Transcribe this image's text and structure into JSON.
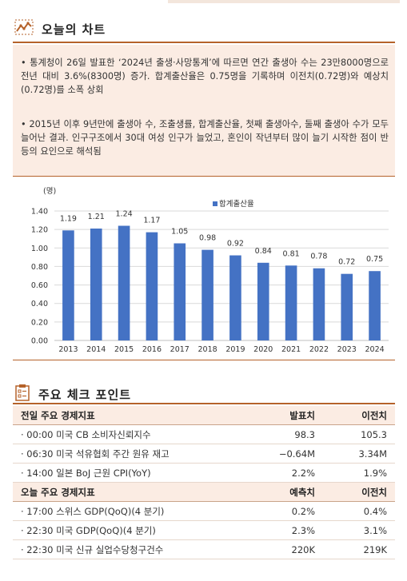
{
  "chart_section": {
    "title": "오늘의 차트",
    "bullets": [
      "• 통계청이 26일 발표한 ‘2024년 출생·사망통계’에 따르면 연간 출생아 수는 23만8000명으로 전년 대비 3.6%(8300명) 증가. 합계출산율은 0.75명을 기록하며 이전치(0.72명)와 예상치(0.72명)를 소폭 상회",
      "• 2015년 이후 9년만에 출생아 수, 조출생률, 합계출산율, 첫째 출생아수, 둘째 출생아 수가 모두 늘어난 결과. 인구구조에서 30대 여성 인구가 늘었고, 혼인이 작년부터 많이 늘기 시작한 점이 반등의 요인으로 해석됨"
    ]
  },
  "chart_data": {
    "type": "bar",
    "unit_label": "(명)",
    "legend": "합계출산율",
    "legend_position": "top-right",
    "categories": [
      "2013",
      "2014",
      "2015",
      "2016",
      "2017",
      "2018",
      "2019",
      "2020",
      "2021",
      "2022",
      "2023",
      "2024"
    ],
    "series": [
      {
        "name": "합계출산율",
        "values": [
          1.19,
          1.21,
          1.24,
          1.17,
          1.05,
          0.98,
          0.92,
          0.84,
          0.81,
          0.78,
          0.72,
          0.75
        ],
        "color": "#4472c4"
      }
    ],
    "data_labels": [
      "1.19",
      "1.21",
      "1.24",
      "1.17",
      "1.05",
      "0.98",
      "0.92",
      "0.84",
      "0.81",
      "0.78",
      "0.72",
      "0.75"
    ],
    "yticks": [
      "0.00",
      "0.20",
      "0.40",
      "0.60",
      "0.80",
      "1.00",
      "1.20",
      "1.40"
    ],
    "ylim": [
      0,
      1.4
    ],
    "grid": true
  },
  "checkpoints": {
    "title": "주요 체크 포인트",
    "prev": {
      "header": [
        "전일 주요 경제지표",
        "발표치",
        "이전치"
      ],
      "rows": [
        [
          "· 00:00 미국 CB 소비자신뢰지수",
          "98.3",
          "105.3"
        ],
        [
          "· 06:30 미국 석유협회 주간 원유 재고",
          "−0.64M",
          "3.34M"
        ],
        [
          "· 14:00 일본 BoJ 근원 CPI(YoY)",
          "2.2%",
          "1.9%"
        ]
      ]
    },
    "today": {
      "header": [
        "오늘 주요 경제지표",
        "예측치",
        "이전치"
      ],
      "rows": [
        [
          "· 17:00 스위스 GDP(QoQ)(4 분기)",
          "0.2%",
          "0.4%"
        ],
        [
          "· 22:30 미국 GDP(QoQ)(4 분기)",
          "2.3%",
          "3.1%"
        ],
        [
          "· 22:30 미국 신규 실업수당청구건수",
          "220K",
          "219K"
        ]
      ]
    }
  },
  "colors": {
    "accent": "#b5622a",
    "panel": "#fbece3",
    "bar": "#4472c4"
  },
  "icons": {
    "chart": "line-chart-icon",
    "checklist": "checklist-icon"
  }
}
